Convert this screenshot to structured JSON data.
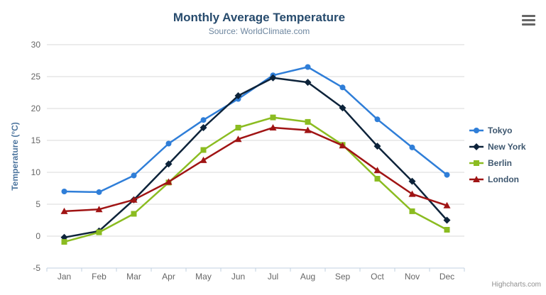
{
  "header": {
    "title": "Monthly Average Temperature",
    "subtitle": "Source: WorldClimate.com",
    "menu_icon": "hamburger-menu-icon"
  },
  "credit_label": "Highcharts.com",
  "colors": {
    "title": "#274b6d",
    "subtitle": "#6d869f",
    "axis_labels": "#666666",
    "yaxis_title": "#4d759e",
    "gridline": "#d8d8d8",
    "xaxis_line": "#c0d0e0",
    "legend_text": "#3e576f",
    "credit": "#909090",
    "menu_icon": "#666666"
  },
  "chart_data": {
    "type": "line",
    "title": "Monthly Average Temperature",
    "subtitle": "Source: WorldClimate.com",
    "xlabel": "",
    "ylabel": "Temperature (°C)",
    "ylim": [
      -5,
      30
    ],
    "yticks": [
      -5,
      0,
      5,
      10,
      15,
      20,
      25,
      30
    ],
    "grid": "horizontal",
    "legend_position": "right",
    "categories": [
      "Jan",
      "Feb",
      "Mar",
      "Apr",
      "May",
      "Jun",
      "Jul",
      "Aug",
      "Sep",
      "Oct",
      "Nov",
      "Dec"
    ],
    "series": [
      {
        "name": "Tokyo",
        "color": "#2f7ed8",
        "marker": "circle",
        "values": [
          7.0,
          6.9,
          9.5,
          14.5,
          18.2,
          21.5,
          25.2,
          26.5,
          23.3,
          18.3,
          13.9,
          9.6
        ]
      },
      {
        "name": "New York",
        "color": "#0d233a",
        "marker": "diamond",
        "values": [
          -0.2,
          0.8,
          5.7,
          11.3,
          17.0,
          22.0,
          24.8,
          24.1,
          20.1,
          14.1,
          8.6,
          2.5
        ]
      },
      {
        "name": "Berlin",
        "color": "#8bbc21",
        "marker": "square",
        "values": [
          -0.9,
          0.6,
          3.5,
          8.4,
          13.5,
          17.0,
          18.6,
          17.9,
          14.3,
          9.0,
          3.9,
          1.0
        ]
      },
      {
        "name": "London",
        "color": "#a01414",
        "marker": "triangle",
        "values": [
          3.9,
          4.2,
          5.7,
          8.5,
          11.9,
          15.2,
          17.0,
          16.6,
          14.2,
          10.3,
          6.6,
          4.8
        ]
      }
    ]
  }
}
